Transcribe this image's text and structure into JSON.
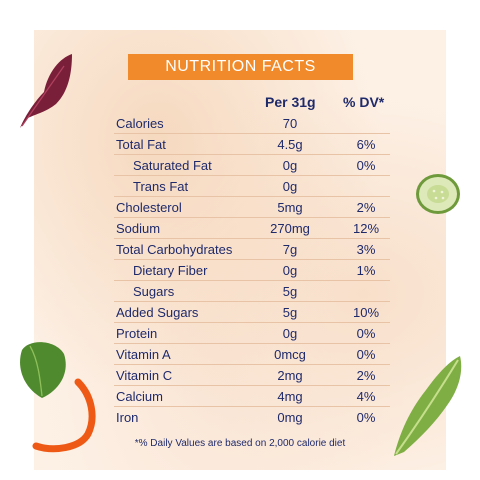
{
  "header": {
    "title": "NUTRITION FACTS"
  },
  "columns": {
    "per": "Per 31g",
    "dv": "% DV*"
  },
  "rows": [
    {
      "name": "Calories",
      "amount": "70",
      "dv": ""
    },
    {
      "name": "Total Fat",
      "amount": "4.5g",
      "dv": "6%"
    },
    {
      "name": "Saturated Fat",
      "amount": "0g",
      "dv": "0%"
    },
    {
      "name": "Trans Fat",
      "amount": "0g",
      "dv": ""
    },
    {
      "name": "Cholesterol",
      "amount": "5mg",
      "dv": "2%"
    },
    {
      "name": "Sodium",
      "amount": "270mg",
      "dv": "12%"
    },
    {
      "name": "Total Carbohydrates",
      "amount": "7g",
      "dv": "3%"
    },
    {
      "name": "Dietary Fiber",
      "amount": "0g",
      "dv": "1%"
    },
    {
      "name": "Sugars",
      "amount": "5g",
      "dv": ""
    },
    {
      "name": "Added Sugars",
      "amount": "5g",
      "dv": "10%"
    },
    {
      "name": "Protein",
      "amount": "0g",
      "dv": "0%"
    },
    {
      "name": "Vitamin A",
      "amount": "0mcg",
      "dv": "0%"
    },
    {
      "name": "Vitamin C",
      "amount": "2mg",
      "dv": "2%"
    },
    {
      "name": "Calcium",
      "amount": "4mg",
      "dv": "4%"
    },
    {
      "name": "Iron",
      "amount": "0mg",
      "dv": "0%"
    }
  ],
  "footnote": "*% Daily Values are based on 2,000 calorie diet",
  "colors": {
    "accent": "#f18a2a",
    "text": "#1f2a6b",
    "divider": "#e8c3a6"
  },
  "decorations": [
    "red-leaf-icon",
    "cucumber-slice-icon",
    "basil-leaf-icon",
    "orange-pepper-strip-icon",
    "green-lettuce-icon"
  ]
}
